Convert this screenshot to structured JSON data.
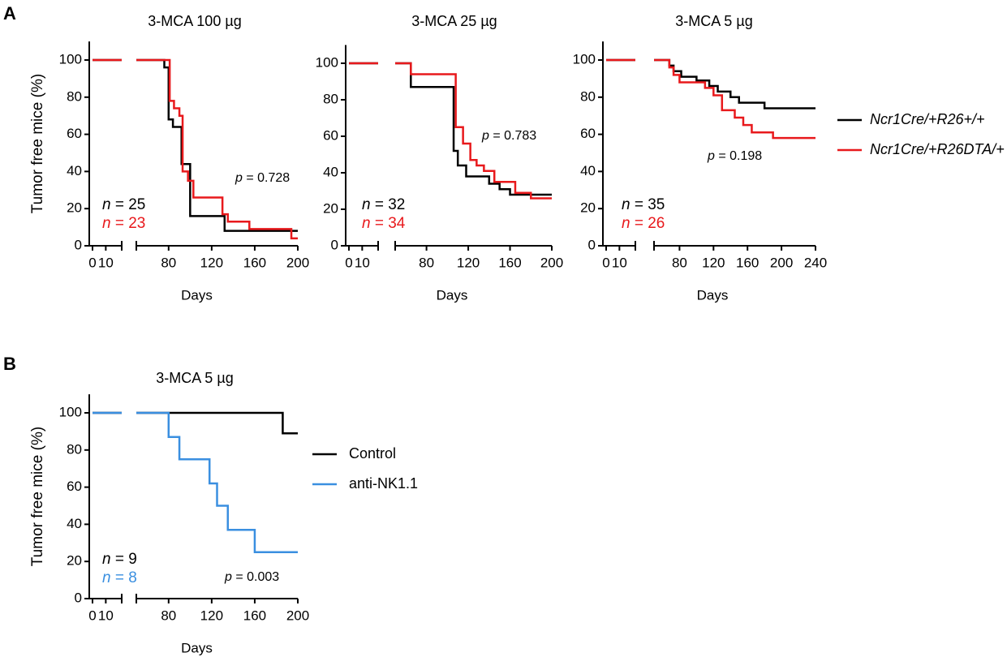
{
  "figure": {
    "panels": [
      "A",
      "B"
    ]
  },
  "chart_data": [
    {
      "type": "step",
      "title": "3-MCA 100 µg",
      "ylabel": "Tumor free mice (%)",
      "xlabel": "Days",
      "xlim": [
        0,
        200
      ],
      "xbreak": [
        22,
        50
      ],
      "xticks": [
        0,
        10,
        80,
        120,
        160,
        200
      ],
      "ylim": [
        0,
        110
      ],
      "yticks": [
        0,
        20,
        40,
        60,
        80,
        100
      ],
      "series": [
        {
          "color": "#000000",
          "x": [
            0,
            76,
            80,
            84,
            92,
            100,
            132,
            200
          ],
          "values": [
            100,
            96,
            68,
            64,
            44,
            16,
            8,
            8
          ]
        },
        {
          "color": "#e8191c",
          "x": [
            0,
            81,
            85,
            90,
            93,
            98,
            103,
            130,
            135,
            155,
            194,
            200
          ],
          "values": [
            100,
            78,
            74,
            70,
            40,
            35,
            26,
            17,
            13,
            9,
            4,
            4
          ]
        }
      ],
      "annotations": [
        {
          "text": "n = 25",
          "color": "#000000"
        },
        {
          "text": "n = 23",
          "color": "#e8191c"
        }
      ],
      "pvalue": "p = 0.728"
    },
    {
      "type": "step",
      "title": "3-MCA 25 µg",
      "xlabel": "Days",
      "xlim": [
        0,
        200
      ],
      "xbreak": [
        22,
        50
      ],
      "xticks": [
        0,
        10,
        80,
        120,
        160,
        200
      ],
      "ylim": [
        0,
        110
      ],
      "yticks": [
        0,
        20,
        40,
        60,
        80,
        100
      ],
      "series": [
        {
          "color": "#000000",
          "x": [
            0,
            65,
            106,
            110,
            118,
            140,
            150,
            160,
            200
          ],
          "values": [
            100,
            87,
            52,
            44,
            38,
            34,
            31,
            28,
            28
          ]
        },
        {
          "color": "#e8191c",
          "x": [
            0,
            65,
            108,
            115,
            122,
            128,
            135,
            145,
            165,
            180,
            200
          ],
          "values": [
            100,
            94,
            65,
            56,
            47,
            44,
            41,
            35,
            29,
            26,
            26
          ]
        }
      ],
      "annotations": [
        {
          "text": "n = 32",
          "color": "#000000"
        },
        {
          "text": "n = 34",
          "color": "#e8191c"
        }
      ],
      "pvalue": "p = 0.783"
    },
    {
      "type": "step",
      "title": "3-MCA 5 µg",
      "xlabel": "Days",
      "xlim": [
        0,
        240
      ],
      "xbreak": [
        22,
        50
      ],
      "xticks": [
        0,
        10,
        80,
        120,
        160,
        200,
        240
      ],
      "ylim": [
        0,
        110
      ],
      "yticks": [
        0,
        20,
        40,
        60,
        80,
        100
      ],
      "series": [
        {
          "name": "Ncr1Cre/+R26+/+",
          "color": "#000000",
          "x": [
            0,
            68,
            73,
            82,
            100,
            115,
            125,
            140,
            150,
            180,
            240
          ],
          "values": [
            100,
            97,
            94,
            91,
            89,
            86,
            83,
            80,
            77,
            74,
            74
          ]
        },
        {
          "name": "Ncr1Cre/+R26DTA/+",
          "color": "#e8191c",
          "x": [
            0,
            68,
            73,
            80,
            110,
            120,
            130,
            145,
            155,
            165,
            190,
            240
          ],
          "values": [
            100,
            96,
            92,
            88,
            85,
            81,
            73,
            69,
            65,
            61,
            58,
            58
          ]
        }
      ],
      "annotations": [
        {
          "text": "n = 35",
          "color": "#000000"
        },
        {
          "text": "n = 26",
          "color": "#e8191c"
        }
      ],
      "pvalue": "p = 0.198"
    },
    {
      "type": "step",
      "title": "3-MCA 5 µg",
      "ylabel": "Tumor free mice (%)",
      "xlabel": "Days",
      "xlim": [
        0,
        200
      ],
      "xbreak": [
        22,
        50
      ],
      "xticks": [
        0,
        10,
        80,
        120,
        160,
        200
      ],
      "ylim": [
        0,
        110
      ],
      "yticks": [
        0,
        20,
        40,
        60,
        80,
        100
      ],
      "series": [
        {
          "name": "Control",
          "color": "#000000",
          "x": [
            0,
            186,
            200
          ],
          "values": [
            100,
            89,
            89
          ]
        },
        {
          "name": "anti-NK1.1",
          "color": "#3a8fe0",
          "x": [
            0,
            80,
            90,
            118,
            125,
            135,
            160,
            200
          ],
          "values": [
            100,
            87,
            75,
            62,
            50,
            37,
            25,
            25
          ]
        }
      ],
      "annotations": [
        {
          "text": "n = 9",
          "color": "#000000"
        },
        {
          "text": "n = 8",
          "color": "#3a8fe0"
        }
      ],
      "pvalue": "p = 0.003"
    }
  ]
}
